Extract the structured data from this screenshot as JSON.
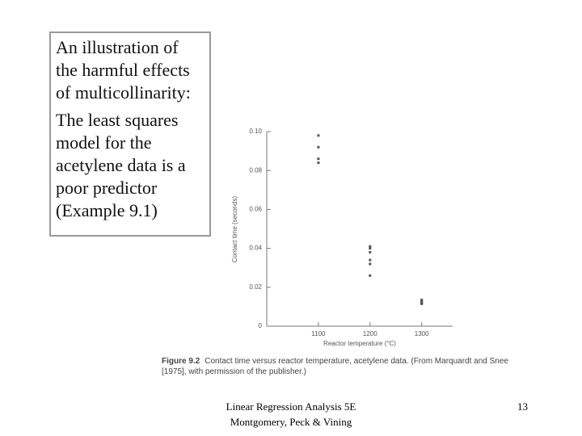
{
  "slide": {
    "box": {
      "heading_lines": [
        "An illustration of",
        "the harmful effects",
        "of multicollinarity:"
      ],
      "body_lines": [
        "The least squares",
        "model for the",
        "acetylene data is a",
        "poor predictor",
        "(Example 9.1)"
      ]
    },
    "caption": {
      "label": "Figure 9.2",
      "text": "Contact time versus reactor temperature, acetylene data. (From Marquardt and Snee [1975], with permission of the publisher.)"
    },
    "footer": {
      "lines": [
        "Linear Regression Analysis 5E",
        "Montgomery, Peck & Vining"
      ],
      "page": "13"
    }
  },
  "chart_data": {
    "type": "scatter",
    "xlabel": "Reactor temperature (°C)",
    "ylabel": "Contact time (seconds)",
    "x": [
      1300,
      1300,
      1300,
      1300,
      1300,
      1300,
      1200,
      1200,
      1200,
      1200,
      1200,
      1200,
      1100,
      1100,
      1100,
      1100
    ],
    "values": [
      0.012,
      0.012,
      0.0115,
      0.013,
      0.0135,
      0.012,
      0.04,
      0.038,
      0.032,
      0.026,
      0.034,
      0.041,
      0.084,
      0.098,
      0.092,
      0.086
    ],
    "color": "#555555",
    "xlim": [
      1000,
      1360
    ],
    "xticks": [
      1100,
      1200,
      1300
    ],
    "ylim": [
      0,
      0.1
    ],
    "yticks": [
      0,
      0.02,
      0.04,
      0.06,
      0.08,
      {
        "value": 0.1,
        "label": "0.10"
      }
    ]
  }
}
